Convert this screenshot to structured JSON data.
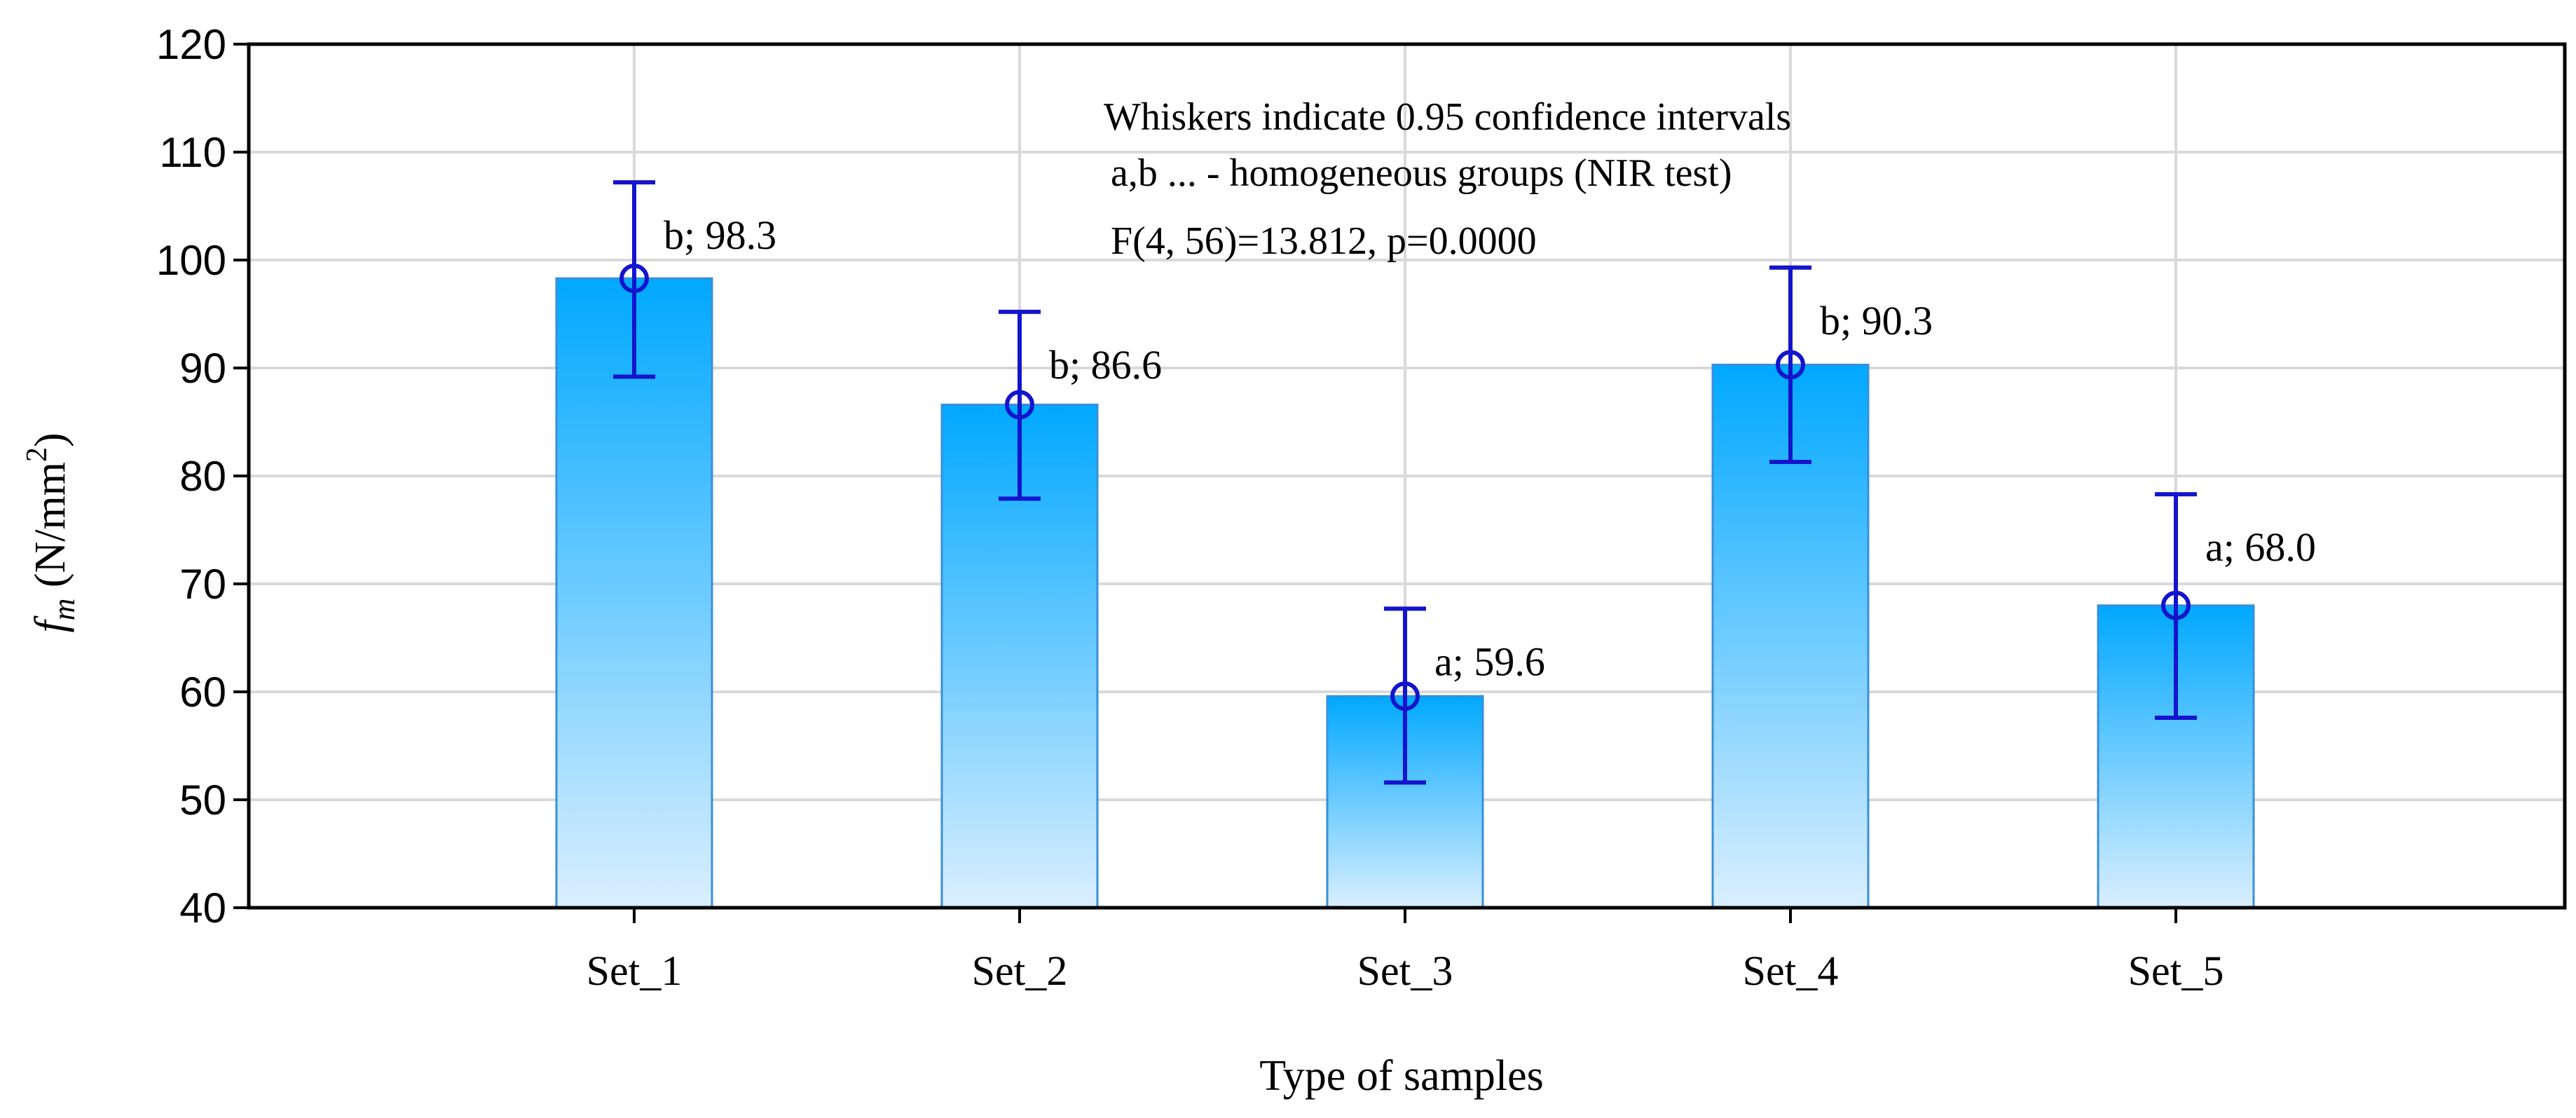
{
  "chart_data": {
    "type": "bar",
    "title": "",
    "xlabel": "Type of samples",
    "ylabel_main": "f",
    "ylabel_sub": "m",
    "ylabel_unit_open": " (N/mm",
    "ylabel_unit_sup": "2",
    "ylabel_unit_close": ")",
    "ylim": [
      40,
      120
    ],
    "yticks": [
      40,
      50,
      60,
      70,
      80,
      90,
      100,
      110,
      120
    ],
    "grid": true,
    "categories": [
      "Set_1",
      "Set_2",
      "Set_3",
      "Set_4",
      "Set_5"
    ],
    "values": [
      98.3,
      86.6,
      59.6,
      90.3,
      68.0
    ],
    "ci_lower": [
      89.2,
      77.9,
      51.6,
      81.3,
      57.6
    ],
    "ci_upper": [
      107.2,
      95.2,
      67.7,
      99.3,
      78.3
    ],
    "labels": [
      "b; 98.3",
      "b; 86.6",
      "a; 59.6",
      "b; 90.3",
      "a; 68.0"
    ],
    "notes": [
      "Whiskers indicate 0.95 confidence intervals",
      "a,b  ... - homogeneous groups (NIR test)",
      "F(4, 56)=13.812, p=0.0000"
    ],
    "colors": {
      "bar_top": "#00a8ff",
      "bar_bottom": "#daefff",
      "bar_edge": "#3a8fd8",
      "whisker": "#1414cc",
      "grid": "#d9d9d9",
      "axis": "#000000"
    }
  }
}
